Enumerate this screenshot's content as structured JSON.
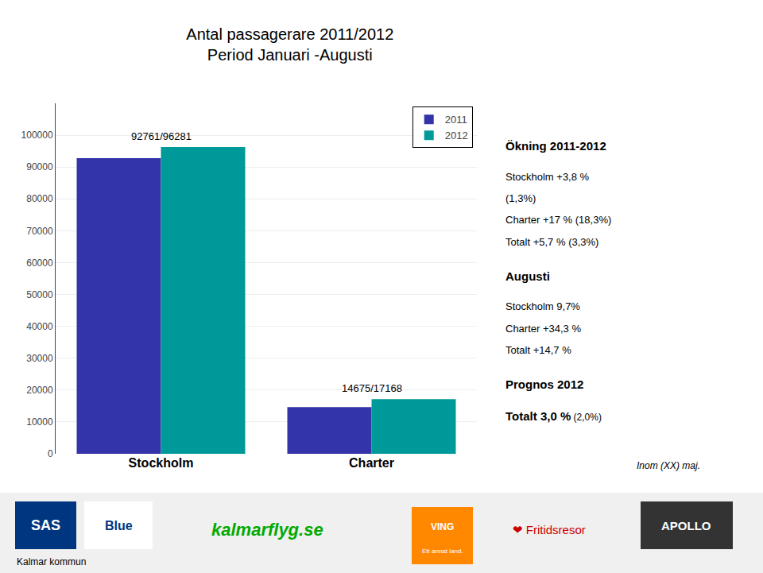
{
  "chart_data": {
    "type": "bar",
    "title": "Antal passagerare 2011/2012",
    "subtitle": "Period Januari -Augusti",
    "categories": [
      "Stockholm",
      "Charter"
    ],
    "series": [
      {
        "name": "2011",
        "color": "#3333AA",
        "values": [
          92761,
          14675
        ]
      },
      {
        "name": "2012",
        "color": "#009999",
        "values": [
          96281,
          17168
        ]
      }
    ],
    "ylim": [
      0,
      110000
    ],
    "yticks": [
      0,
      10000,
      20000,
      30000,
      40000,
      50000,
      60000,
      70000,
      80000,
      90000,
      100000
    ],
    "grid": true,
    "legend": "top right",
    "annotations": [
      {
        "category": "Stockholm",
        "text": "92761/96281"
      },
      {
        "category": "Charter",
        "text": "14675/17168"
      }
    ],
    "side_panel": [
      {
        "heading": "Ökning 2011-2012",
        "lines": [
          "Stockholm +3,8 %",
          "(1,3%)",
          "Charter +17 % (18,3%)",
          "Totalt +5,7 % (3,3%)"
        ]
      },
      {
        "heading": "Augusti",
        "lines": [
          "Stockholm 9,7%",
          "Charter +34,3 %",
          "Totalt +14,7 %"
        ]
      },
      {
        "heading": "Prognos 2012",
        "emphasis": "Totalt 3,0 %",
        "aside": " (2,0%)"
      }
    ],
    "note": "Inom (XX) maj.",
    "footer": {
      "color": "#f0f0f0",
      "items": [
        {
          "text": "SAS",
          "color": "#ffffff",
          "box": "#003580"
        },
        {
          "text": "Blue",
          "color": "#003580",
          "box": "#ffffff"
        },
        {
          "text": "kalmarflyg.se",
          "color": "#00aa00"
        },
        {
          "text": "VING",
          "subtext": "Ett annat land.",
          "color": "#ffffff",
          "box": "#ff8800"
        },
        {
          "text": "❤ Fritidsresor",
          "color": "#cc0000"
        },
        {
          "text": "APOLLO",
          "color": "#ffffff",
          "box": "#333333"
        },
        {
          "text": "Kalmar kommun"
        }
      ]
    }
  }
}
